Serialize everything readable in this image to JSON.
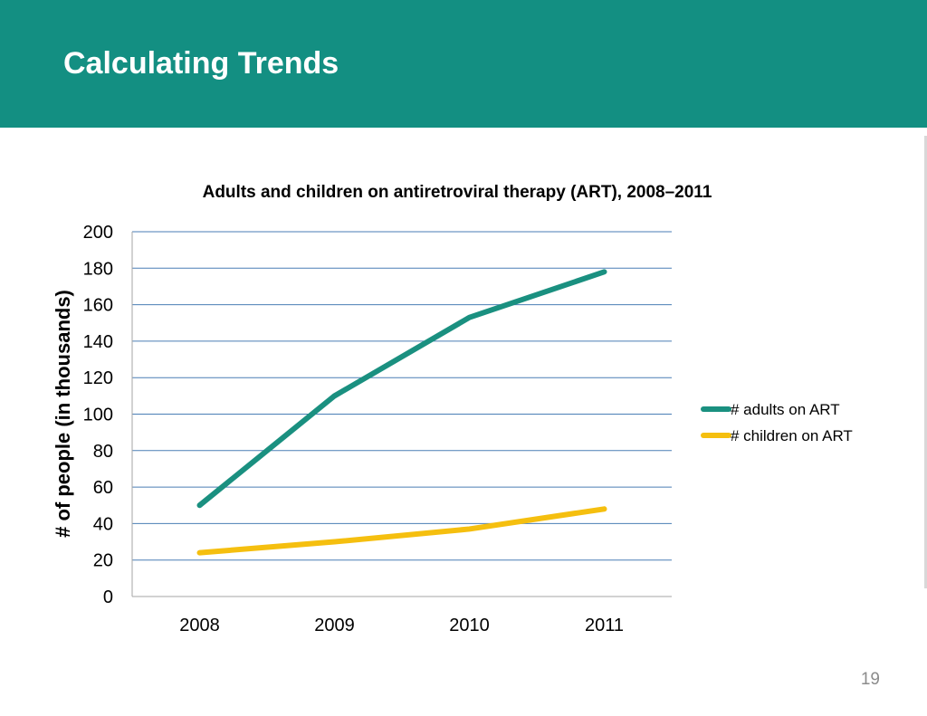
{
  "slide": {
    "title": "Calculating Trends",
    "page_number": "19",
    "header_color": "#138f82"
  },
  "chart_data": {
    "type": "line",
    "title": "Adults and children on antiretroviral therapy (ART), 2008–2011",
    "xlabel": "",
    "ylabel": "# of people (in thousands)",
    "categories": [
      "2008",
      "2009",
      "2010",
      "2011"
    ],
    "ylim": [
      0,
      200
    ],
    "yticks": [
      0,
      20,
      40,
      60,
      80,
      100,
      120,
      140,
      160,
      180,
      200
    ],
    "grid": true,
    "legend_position": "right",
    "series": [
      {
        "name": "# adults on ART",
        "color": "#1a9080",
        "values": [
          50,
          110,
          153,
          178
        ]
      },
      {
        "name": "# children on ART",
        "color": "#f5bf0f",
        "values": [
          24,
          30,
          37,
          48
        ]
      }
    ]
  }
}
